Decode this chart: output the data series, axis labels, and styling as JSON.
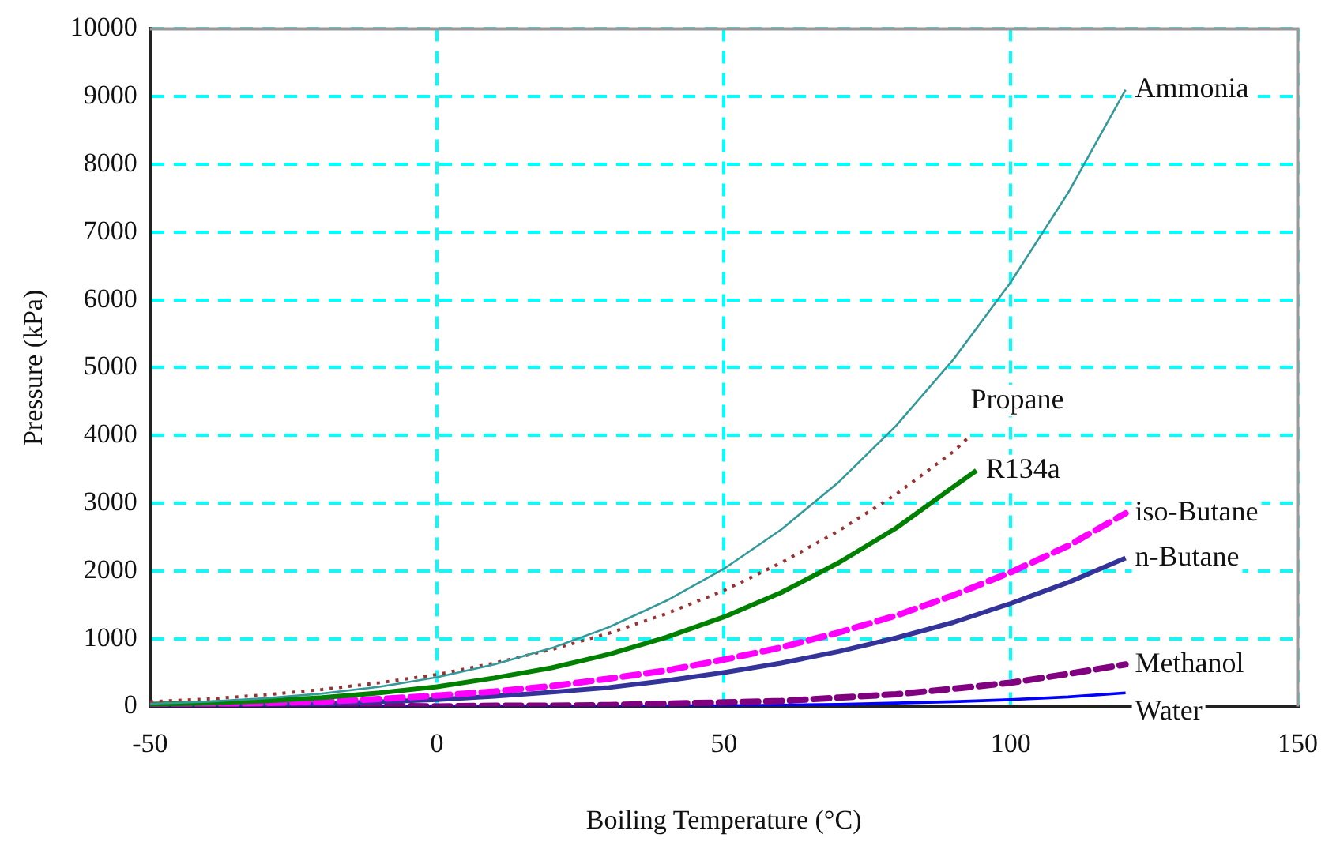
{
  "chart_data": {
    "type": "line",
    "xlabel": "Boiling Temperature (°C)",
    "ylabel": "Pressure (kPa)",
    "xlim": [
      -50,
      150
    ],
    "xticks": [
      -50,
      0,
      50,
      100,
      150
    ],
    "ylim": [
      0,
      10000
    ],
    "yticks": [
      0,
      1000,
      2000,
      3000,
      4000,
      5000,
      6000,
      7000,
      8000,
      9000,
      10000
    ],
    "grid": true,
    "legend": false,
    "marker": "none",
    "series": [
      {
        "name": "Ammonia",
        "color": "#339999",
        "line_style": "solid",
        "x": [
          -50,
          -40,
          -30,
          -20,
          -10,
          0,
          10,
          20,
          30,
          40,
          50,
          60,
          70,
          80,
          90,
          100,
          110,
          120
        ],
        "values": [
          40,
          70,
          120,
          190,
          290,
          430,
          620,
          860,
          1170,
          1560,
          2030,
          2610,
          3310,
          4140,
          5120,
          6260,
          7580,
          9100
        ]
      },
      {
        "name": "Propane",
        "color": "#993333",
        "line_style": "dotted",
        "x": [
          -50,
          -40,
          -30,
          -20,
          -10,
          0,
          10,
          20,
          30,
          40,
          50,
          60,
          70,
          80,
          90,
          93
        ],
        "values": [
          70,
          110,
          170,
          250,
          350,
          470,
          640,
          840,
          1080,
          1370,
          1710,
          2120,
          2590,
          3130,
          3760,
          4000
        ]
      },
      {
        "name": "R134a",
        "color": "#008000",
        "line_style": "solid",
        "x": [
          -50,
          -40,
          -30,
          -20,
          -10,
          0,
          10,
          20,
          30,
          40,
          50,
          60,
          70,
          80,
          90,
          94
        ],
        "values": [
          30,
          50,
          80,
          130,
          200,
          290,
          420,
          570,
          770,
          1020,
          1320,
          1680,
          2120,
          2630,
          3240,
          3480
        ]
      },
      {
        "name": "iso-Butane",
        "color": "#ff00ff",
        "line_style": "dashed",
        "x": [
          -50,
          -40,
          -30,
          -20,
          -10,
          0,
          10,
          20,
          30,
          40,
          50,
          60,
          70,
          80,
          90,
          100,
          110,
          120
        ],
        "values": [
          20,
          30,
          50,
          70,
          110,
          160,
          220,
          300,
          410,
          530,
          690,
          870,
          1090,
          1340,
          1640,
          1980,
          2370,
          2850
        ]
      },
      {
        "name": "n-Butane",
        "color": "#333399",
        "line_style": "solid",
        "x": [
          -50,
          -40,
          -30,
          -20,
          -10,
          0,
          10,
          20,
          30,
          40,
          50,
          60,
          70,
          80,
          90,
          100,
          110,
          120
        ],
        "values": [
          10,
          20,
          30,
          40,
          70,
          100,
          150,
          210,
          280,
          380,
          500,
          640,
          810,
          1010,
          1240,
          1520,
          1830,
          2190
        ]
      },
      {
        "name": "Methanol",
        "color": "#800080",
        "line_style": "dashed",
        "x": [
          -50,
          -40,
          -30,
          -20,
          -10,
          0,
          10,
          20,
          30,
          40,
          50,
          60,
          70,
          80,
          90,
          100,
          110,
          120
        ],
        "values": [
          0,
          0,
          0,
          0,
          10,
          0,
          10,
          10,
          20,
          40,
          60,
          80,
          130,
          180,
          260,
          350,
          480,
          620
        ]
      },
      {
        "name": "Water",
        "color": "#0000ff",
        "line_style": "solid",
        "x": [
          -50,
          0,
          10,
          20,
          30,
          40,
          50,
          60,
          70,
          80,
          90,
          100,
          110,
          120
        ],
        "values": [
          0,
          0,
          0,
          0,
          0,
          10,
          10,
          20,
          30,
          50,
          70,
          100,
          140,
          200
        ]
      }
    ]
  }
}
